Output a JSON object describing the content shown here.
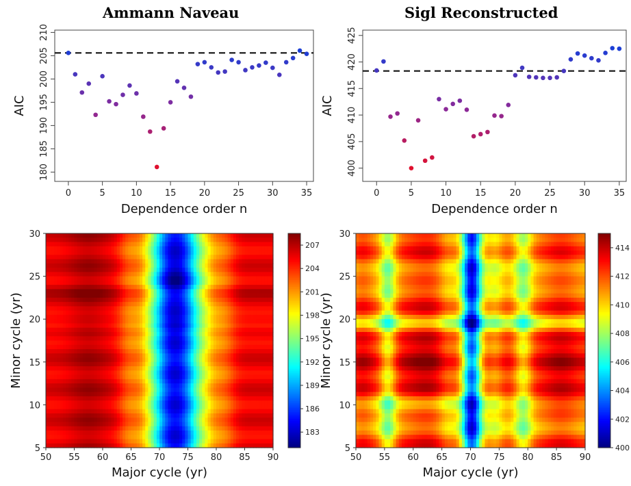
{
  "colors": {
    "low": "#e0102e",
    "mid": "#8a2a9a",
    "high": "#1c3fd6"
  },
  "chart_data": [
    {
      "id": "ammann-scatter",
      "type": "scatter",
      "title": "Ammann Naveau",
      "xlabel": "Dependence order n",
      "ylabel": "AIC",
      "xlim": [
        -2,
        36
      ],
      "ylim": [
        178,
        210.5
      ],
      "xticks": [
        0,
        5,
        10,
        15,
        20,
        25,
        30,
        35
      ],
      "yticks": [
        180,
        185,
        190,
        195,
        200,
        205,
        210
      ],
      "reference_line": 205.6,
      "color_range": [
        181,
        206
      ],
      "series": [
        {
          "x": [
            0,
            1,
            2,
            3,
            4,
            5,
            6,
            7,
            8,
            9,
            10,
            11,
            12,
            13,
            14,
            15,
            16,
            17,
            18,
            19,
            20,
            21,
            22,
            23,
            24,
            25,
            26,
            27,
            28,
            29,
            30,
            31,
            32,
            33,
            34,
            35
          ],
          "y": [
            205.6,
            201.0,
            197.1,
            199.0,
            192.3,
            200.6,
            195.2,
            194.6,
            196.6,
            198.6,
            196.9,
            191.9,
            188.7,
            181.1,
            189.4,
            195.0,
            199.5,
            198.1,
            196.2,
            203.2,
            203.6,
            202.5,
            201.4,
            201.6,
            204.1,
            203.6,
            201.9,
            202.5,
            202.9,
            203.5,
            202.4,
            200.9,
            203.6,
            204.5,
            206.1,
            205.4
          ]
        }
      ]
    },
    {
      "id": "sigl-scatter",
      "type": "scatter",
      "title": "Sigl Reconstructed",
      "xlabel": "Dependence order n",
      "ylabel": "AIC",
      "xlim": [
        -2,
        36
      ],
      "ylim": [
        397.5,
        426
      ],
      "xticks": [
        0,
        5,
        10,
        15,
        20,
        25,
        30,
        35
      ],
      "yticks": [
        400,
        405,
        410,
        415,
        420,
        425
      ],
      "reference_line": 418.3,
      "color_range": [
        400,
        422.6
      ],
      "series": [
        {
          "x": [
            0,
            1,
            2,
            3,
            4,
            5,
            6,
            7,
            8,
            9,
            10,
            11,
            12,
            13,
            14,
            15,
            16,
            17,
            18,
            19,
            20,
            21,
            22,
            23,
            24,
            25,
            26,
            27,
            28,
            29,
            30,
            31,
            32,
            33,
            34,
            35
          ],
          "y": [
            418.4,
            420.1,
            409.7,
            410.3,
            405.2,
            400.0,
            409.0,
            401.4,
            402.0,
            413.0,
            411.1,
            412.1,
            412.7,
            411.0,
            406.0,
            406.4,
            406.8,
            409.9,
            409.8,
            411.9,
            417.5,
            418.9,
            417.2,
            417.1,
            417.0,
            417.0,
            417.1,
            418.3,
            420.5,
            421.6,
            421.2,
            420.7,
            420.3,
            421.7,
            422.6,
            422.5
          ]
        }
      ]
    },
    {
      "id": "ammann-heatmap",
      "type": "heatmap",
      "xlabel": "Major cycle (yr)",
      "ylabel": "Minor cycle (yr)",
      "xlim": [
        50,
        90
      ],
      "ylim": [
        5,
        30
      ],
      "xticks": [
        50,
        55,
        60,
        65,
        70,
        75,
        80,
        85,
        90
      ],
      "yticks": [
        5,
        10,
        15,
        20,
        25,
        30
      ],
      "colorbar_ticks": [
        183,
        186,
        189,
        192,
        195,
        198,
        201,
        204,
        207
      ],
      "vmin": 181,
      "vmax": 208.5
    },
    {
      "id": "sigl-heatmap",
      "type": "heatmap",
      "xlabel": "Major cycle (yr)",
      "ylabel": "Minor cycle (yr)",
      "xlim": [
        50,
        90
      ],
      "ylim": [
        5,
        30
      ],
      "xticks": [
        50,
        55,
        60,
        65,
        70,
        75,
        80,
        85,
        90
      ],
      "yticks": [
        5,
        10,
        15,
        20,
        25,
        30
      ],
      "colorbar_ticks": [
        400,
        402,
        404,
        406,
        408,
        410,
        412,
        414
      ],
      "vmin": 400,
      "vmax": 415
    }
  ]
}
